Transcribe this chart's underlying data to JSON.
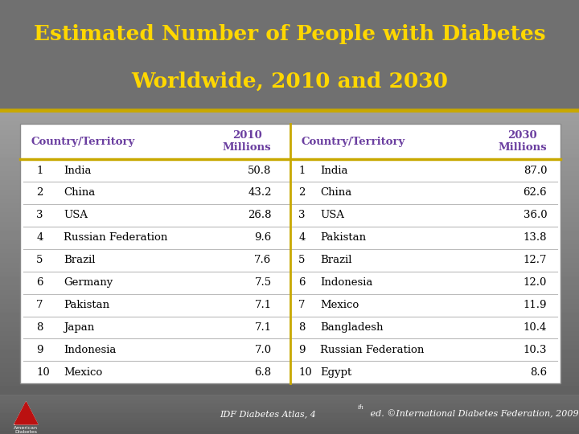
{
  "title_line1": "Estimated Number of People with Diabetes",
  "title_line2": "Worldwide, 2010 and 2030",
  "title_bg": "#000000",
  "title_color": "#FFD700",
  "table_outer_bg_top": "#888888",
  "table_outer_bg_bottom": "#555555",
  "header_color": "#6B3FA0",
  "header_label_left": "Country/Territory",
  "header_label_right": "Country/Territory",
  "divider_color": "#C8A800",
  "row_bg": "#FFFFFF",
  "row_divider": "#AAAAAA",
  "text_color_dark": "#000000",
  "data_2010": [
    [
      1,
      "India",
      50.8
    ],
    [
      2,
      "China",
      43.2
    ],
    [
      3,
      "USA",
      26.8
    ],
    [
      4,
      "Russian Federation",
      9.6
    ],
    [
      5,
      "Brazil",
      7.6
    ],
    [
      6,
      "Germany",
      7.5
    ],
    [
      7,
      "Pakistan",
      7.1
    ],
    [
      8,
      "Japan",
      7.1
    ],
    [
      9,
      "Indonesia",
      7.0
    ],
    [
      10,
      "Mexico",
      6.8
    ]
  ],
  "data_2030": [
    [
      1,
      "India",
      87.0
    ],
    [
      2,
      "China",
      62.6
    ],
    [
      3,
      "USA",
      36.0
    ],
    [
      4,
      "Pakistan",
      13.8
    ],
    [
      5,
      "Brazil",
      12.7
    ],
    [
      6,
      "Indonesia",
      12.0
    ],
    [
      7,
      "Mexico",
      11.9
    ],
    [
      8,
      "Bangladesh",
      10.4
    ],
    [
      9,
      "Russian Federation",
      10.3
    ],
    [
      10,
      "Egypt",
      8.6
    ]
  ],
  "outer_bg": "#707070"
}
